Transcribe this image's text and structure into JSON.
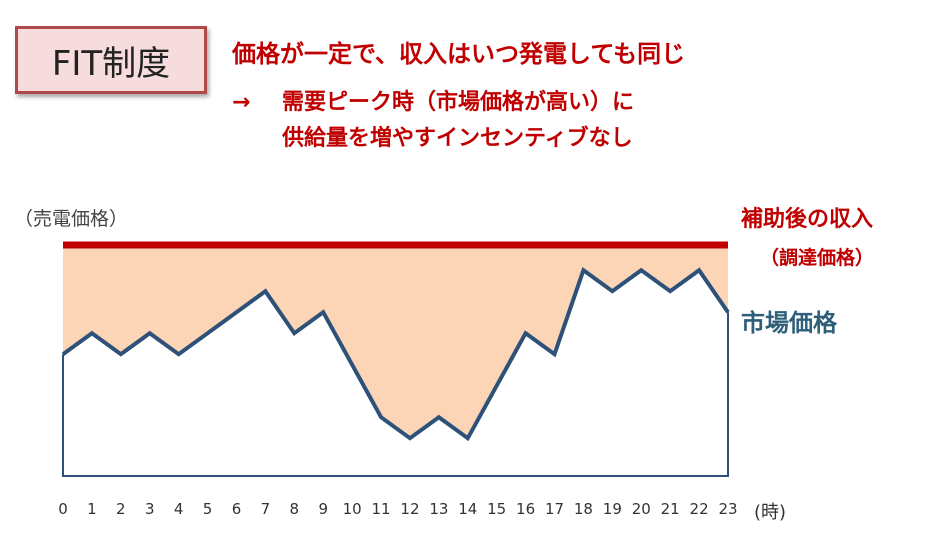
{
  "badge": {
    "label": "FIT制度"
  },
  "headline": "価格が一定で、収入はいつ発電しても同じ",
  "consequence": {
    "arrow": "→",
    "line1": "需要ピーク時（市場価格が高い）に",
    "line2": "供給量を増やすインセンティブなし"
  },
  "chart_data": {
    "type": "line",
    "ylabel": "（売電価格）",
    "xlabel": "(時)",
    "x": [
      0,
      1,
      2,
      3,
      4,
      5,
      6,
      7,
      8,
      9,
      10,
      11,
      12,
      13,
      14,
      15,
      16,
      17,
      18,
      19,
      20,
      21,
      22,
      23
    ],
    "ylim": [
      0,
      11
    ],
    "grid": false,
    "series": [
      {
        "name": "補助後の収入",
        "sublabel": "（調達価格）",
        "color": "#c00000",
        "values": [
          11,
          11,
          11,
          11,
          11,
          11,
          11,
          11,
          11,
          11,
          11,
          11,
          11,
          11,
          11,
          11,
          11,
          11,
          11,
          11,
          11,
          11,
          11,
          11
        ]
      },
      {
        "name": "市場価格",
        "color": "#2e5179",
        "values": [
          5.8,
          6.8,
          5.8,
          6.8,
          5.8,
          6.8,
          7.8,
          8.8,
          6.8,
          7.8,
          5.3,
          2.8,
          1.8,
          2.8,
          1.8,
          4.3,
          6.8,
          5.8,
          9.8,
          8.8,
          9.8,
          8.8,
          9.8,
          7.8
        ]
      }
    ],
    "fill_between_color": "#fbd5b5"
  }
}
